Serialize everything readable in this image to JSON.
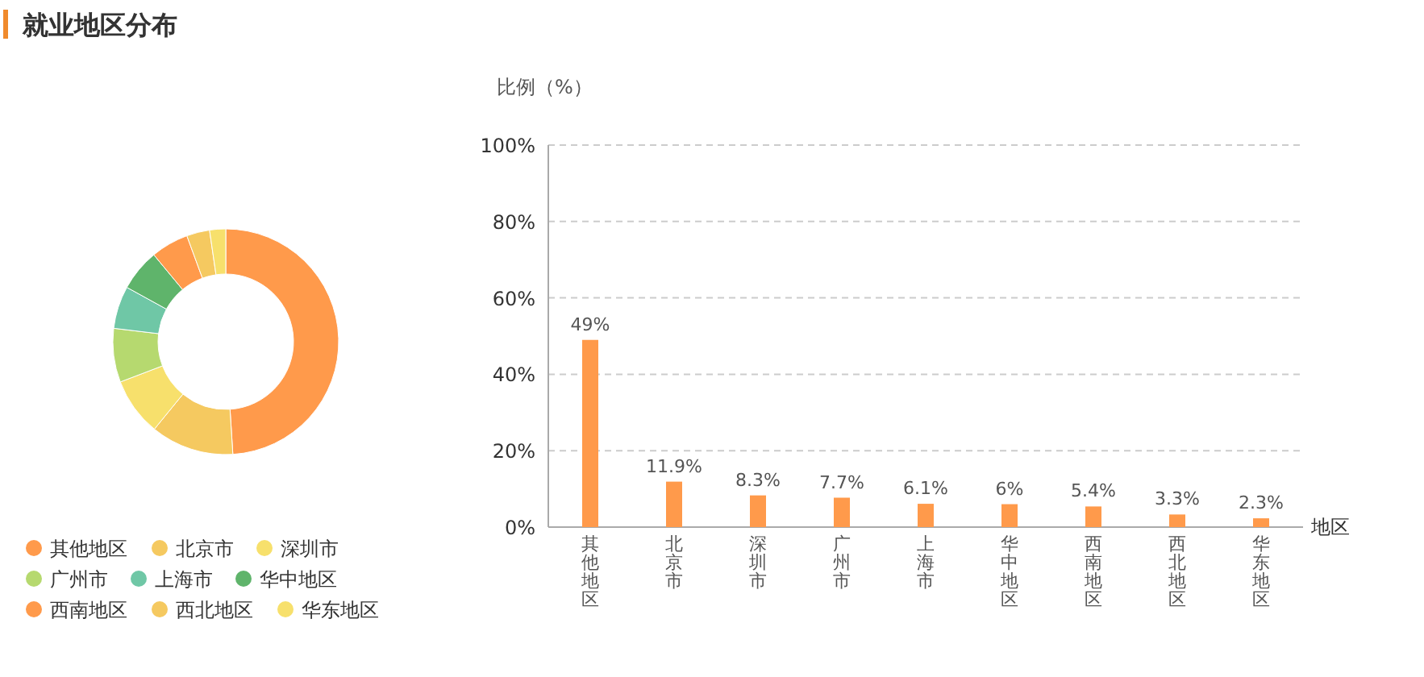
{
  "chart_data": [
    {
      "type": "donut",
      "title": "就业地区分布",
      "categories": [
        "其他地区",
        "北京市",
        "深圳市",
        "广州市",
        "上海市",
        "华中地区",
        "西南地区",
        "西北地区",
        "华东地区"
      ],
      "values": [
        49,
        11.9,
        8.3,
        7.7,
        6.1,
        6,
        5.4,
        3.3,
        2.3
      ],
      "colors": [
        "#ff9a4b",
        "#f5c960",
        "#f7e06c",
        "#b6d96f",
        "#6fc7a6",
        "#5fb46b",
        "#ff9a4b",
        "#f5c960",
        "#f7e06c"
      ],
      "legend": "bottom left"
    },
    {
      "type": "bar",
      "categories": [
        "其他地区",
        "北京市",
        "深圳市",
        "广州市",
        "上海市",
        "华中地区",
        "西南地区",
        "西北地区",
        "华东地区"
      ],
      "values": [
        49,
        11.9,
        8.3,
        7.7,
        6.1,
        6,
        5.4,
        3.3,
        2.3
      ],
      "value_labels": [
        "49%",
        "11.9%",
        "8.3%",
        "7.7%",
        "6.1%",
        "6%",
        "5.4%",
        "3.3%",
        "2.3%"
      ],
      "color": "#ff9a4b",
      "xlabel": "地区",
      "ylabel": "比例（%）",
      "ylim": [
        0,
        100
      ],
      "yticks": [
        {
          "value": 0,
          "label": "0%"
        },
        {
          "value": 20,
          "label": "20%"
        },
        {
          "value": 40,
          "label": "40%"
        },
        {
          "value": 60,
          "label": "60%"
        },
        {
          "value": 80,
          "label": "80%"
        },
        {
          "value": 100,
          "label": "100%"
        }
      ],
      "grid": "y"
    }
  ]
}
